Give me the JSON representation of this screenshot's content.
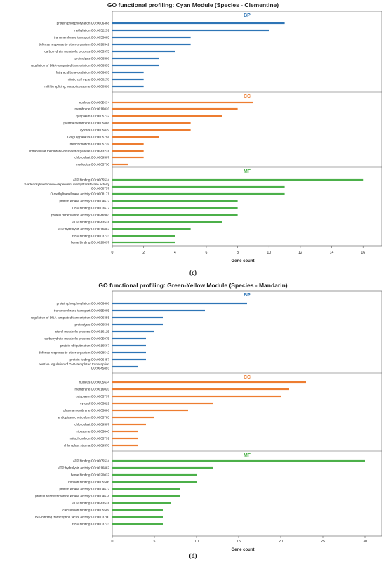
{
  "colors": {
    "BP": "#2e75b6",
    "CC": "#ed7d31",
    "MF": "#4cb04a",
    "frame": "#555555",
    "text": "#222222"
  },
  "chart_data": [
    {
      "type": "bar",
      "orientation": "horizontal",
      "title": "GO functional profiling: Cyan Module (Species - Clementine)",
      "xlabel": "Gene count",
      "xlim": [
        0,
        17.2
      ],
      "xticks": [
        0,
        2,
        4,
        6,
        8,
        10,
        12,
        14,
        16
      ],
      "panel_label": "(c)",
      "grid": false,
      "groups": [
        {
          "name": "BP",
          "items": [
            {
              "label": "protein phosphorylation GO:0006468",
              "value": 11
            },
            {
              "label": "methylation GO:0032259",
              "value": 10
            },
            {
              "label": "transmembrane transport GO:0055085",
              "value": 5
            },
            {
              "label": "defense response to other organism GO:0098542",
              "value": 5
            },
            {
              "label": "carbohydrate metabolic process GO:0005975",
              "value": 4
            },
            {
              "label": "proteolysis GO:0006508",
              "value": 3
            },
            {
              "label": "regulation of DNA-templated transcription GO:0006355",
              "value": 3
            },
            {
              "label": "fatty acid beta-oxidation GO:0006635",
              "value": 2
            },
            {
              "label": "mitotic cell cycle GO:0000278",
              "value": 2
            },
            {
              "label": "mRNA splicing, via spliceosome GO:0000398",
              "value": 2
            }
          ]
        },
        {
          "name": "CC",
          "items": [
            {
              "label": "nucleus GO:0005634",
              "value": 9
            },
            {
              "label": "membrane GO:0016020",
              "value": 8
            },
            {
              "label": "cytoplasm GO:0005737",
              "value": 7
            },
            {
              "label": "plasma membrane GO:0005886",
              "value": 5
            },
            {
              "label": "cytosol GO:0005829",
              "value": 5
            },
            {
              "label": "Golgi apparatus GO:0005794",
              "value": 3
            },
            {
              "label": "mitochondrion GO:0005739",
              "value": 2
            },
            {
              "label": "intracellular membrane-bounded organelle GO:0043231",
              "value": 2
            },
            {
              "label": "chloroplast GO:0009507",
              "value": 2
            },
            {
              "label": "nucleolus GO:0005730",
              "value": 1
            }
          ]
        },
        {
          "name": "MF",
          "items": [
            {
              "label": "ATP binding GO:0005524",
              "value": 16
            },
            {
              "label": "S-adenosylmethionine-dependent methyltransferase activity GO:0008757",
              "value": 11
            },
            {
              "label": "O-methyltransferase activity GO:0008171",
              "value": 11
            },
            {
              "label": "protein kinase activity GO:0004672",
              "value": 8
            },
            {
              "label": "DNA binding GO:0003677",
              "value": 8
            },
            {
              "label": "protein dimerization activity GO:0046983",
              "value": 8
            },
            {
              "label": "ADP binding GO:0043531",
              "value": 7
            },
            {
              "label": "ATP hydrolysis activity GO:0016887",
              "value": 5
            },
            {
              "label": "RNA binding GO:0003723",
              "value": 4
            },
            {
              "label": "heme binding GO:0020037",
              "value": 4
            }
          ]
        }
      ]
    },
    {
      "type": "bar",
      "orientation": "horizontal",
      "title": "GO functional profiling: Green-Yellow Module (Species - Mandarin)",
      "xlabel": "Gene count",
      "xlim": [
        0,
        32
      ],
      "xticks": [
        0,
        5,
        10,
        15,
        20,
        25,
        30
      ],
      "panel_label": "(d)",
      "grid": false,
      "groups": [
        {
          "name": "BP",
          "items": [
            {
              "label": "protein phosphorylation GO:0006468",
              "value": 16
            },
            {
              "label": "transmembrane transport GO:0055085",
              "value": 11
            },
            {
              "label": "regulation of DNA-templated transcription GO:0006355",
              "value": 6
            },
            {
              "label": "proteolysis GO:0006508",
              "value": 6
            },
            {
              "label": "sterol metabolic process GO:0016125",
              "value": 5
            },
            {
              "label": "carbohydrate metabolic process GO:0005975",
              "value": 4
            },
            {
              "label": "protein ubiquitination GO:0016567",
              "value": 4
            },
            {
              "label": "defense response to other organism GO:0098542",
              "value": 4
            },
            {
              "label": "protein folding GO:0006457",
              "value": 4
            },
            {
              "label": "positive regulation of DNA-templated transcription GO:0045893",
              "value": 3
            }
          ]
        },
        {
          "name": "CC",
          "items": [
            {
              "label": "nucleus GO:0005634",
              "value": 23
            },
            {
              "label": "membrane GO:0016020",
              "value": 21
            },
            {
              "label": "cytoplasm GO:0005737",
              "value": 20
            },
            {
              "label": "cytosol GO:0005829",
              "value": 12
            },
            {
              "label": "plasma membrane GO:0005886",
              "value": 9
            },
            {
              "label": "endoplasmic reticulum GO:0005783",
              "value": 5
            },
            {
              "label": "chloroplast GO:0009507",
              "value": 4
            },
            {
              "label": "ribosome GO:0005840",
              "value": 3
            },
            {
              "label": "mitochondrion GO:0005739",
              "value": 3
            },
            {
              "label": "chloroplast stroma GO:0009570",
              "value": 3
            }
          ]
        },
        {
          "name": "MF",
          "items": [
            {
              "label": "ATP binding GO:0005524",
              "value": 30
            },
            {
              "label": "ATP hydrolysis activity GO:0016887",
              "value": 12
            },
            {
              "label": "heme binding GO:0020037",
              "value": 10
            },
            {
              "label": "iron ion binding GO:0005506",
              "value": 10
            },
            {
              "label": "protein kinase activity GO:0004672",
              "value": 8
            },
            {
              "label": "protein serine/threonine kinase activity GO:0004674",
              "value": 8
            },
            {
              "label": "ADP binding GO:0043531",
              "value": 7
            },
            {
              "label": "calcium ion binding GO:0005509",
              "value": 6
            },
            {
              "label": "DNA-binding transcription factor activity GO:0003700",
              "value": 6
            },
            {
              "label": "RNA binding GO:0003723",
              "value": 6
            }
          ]
        }
      ]
    }
  ]
}
